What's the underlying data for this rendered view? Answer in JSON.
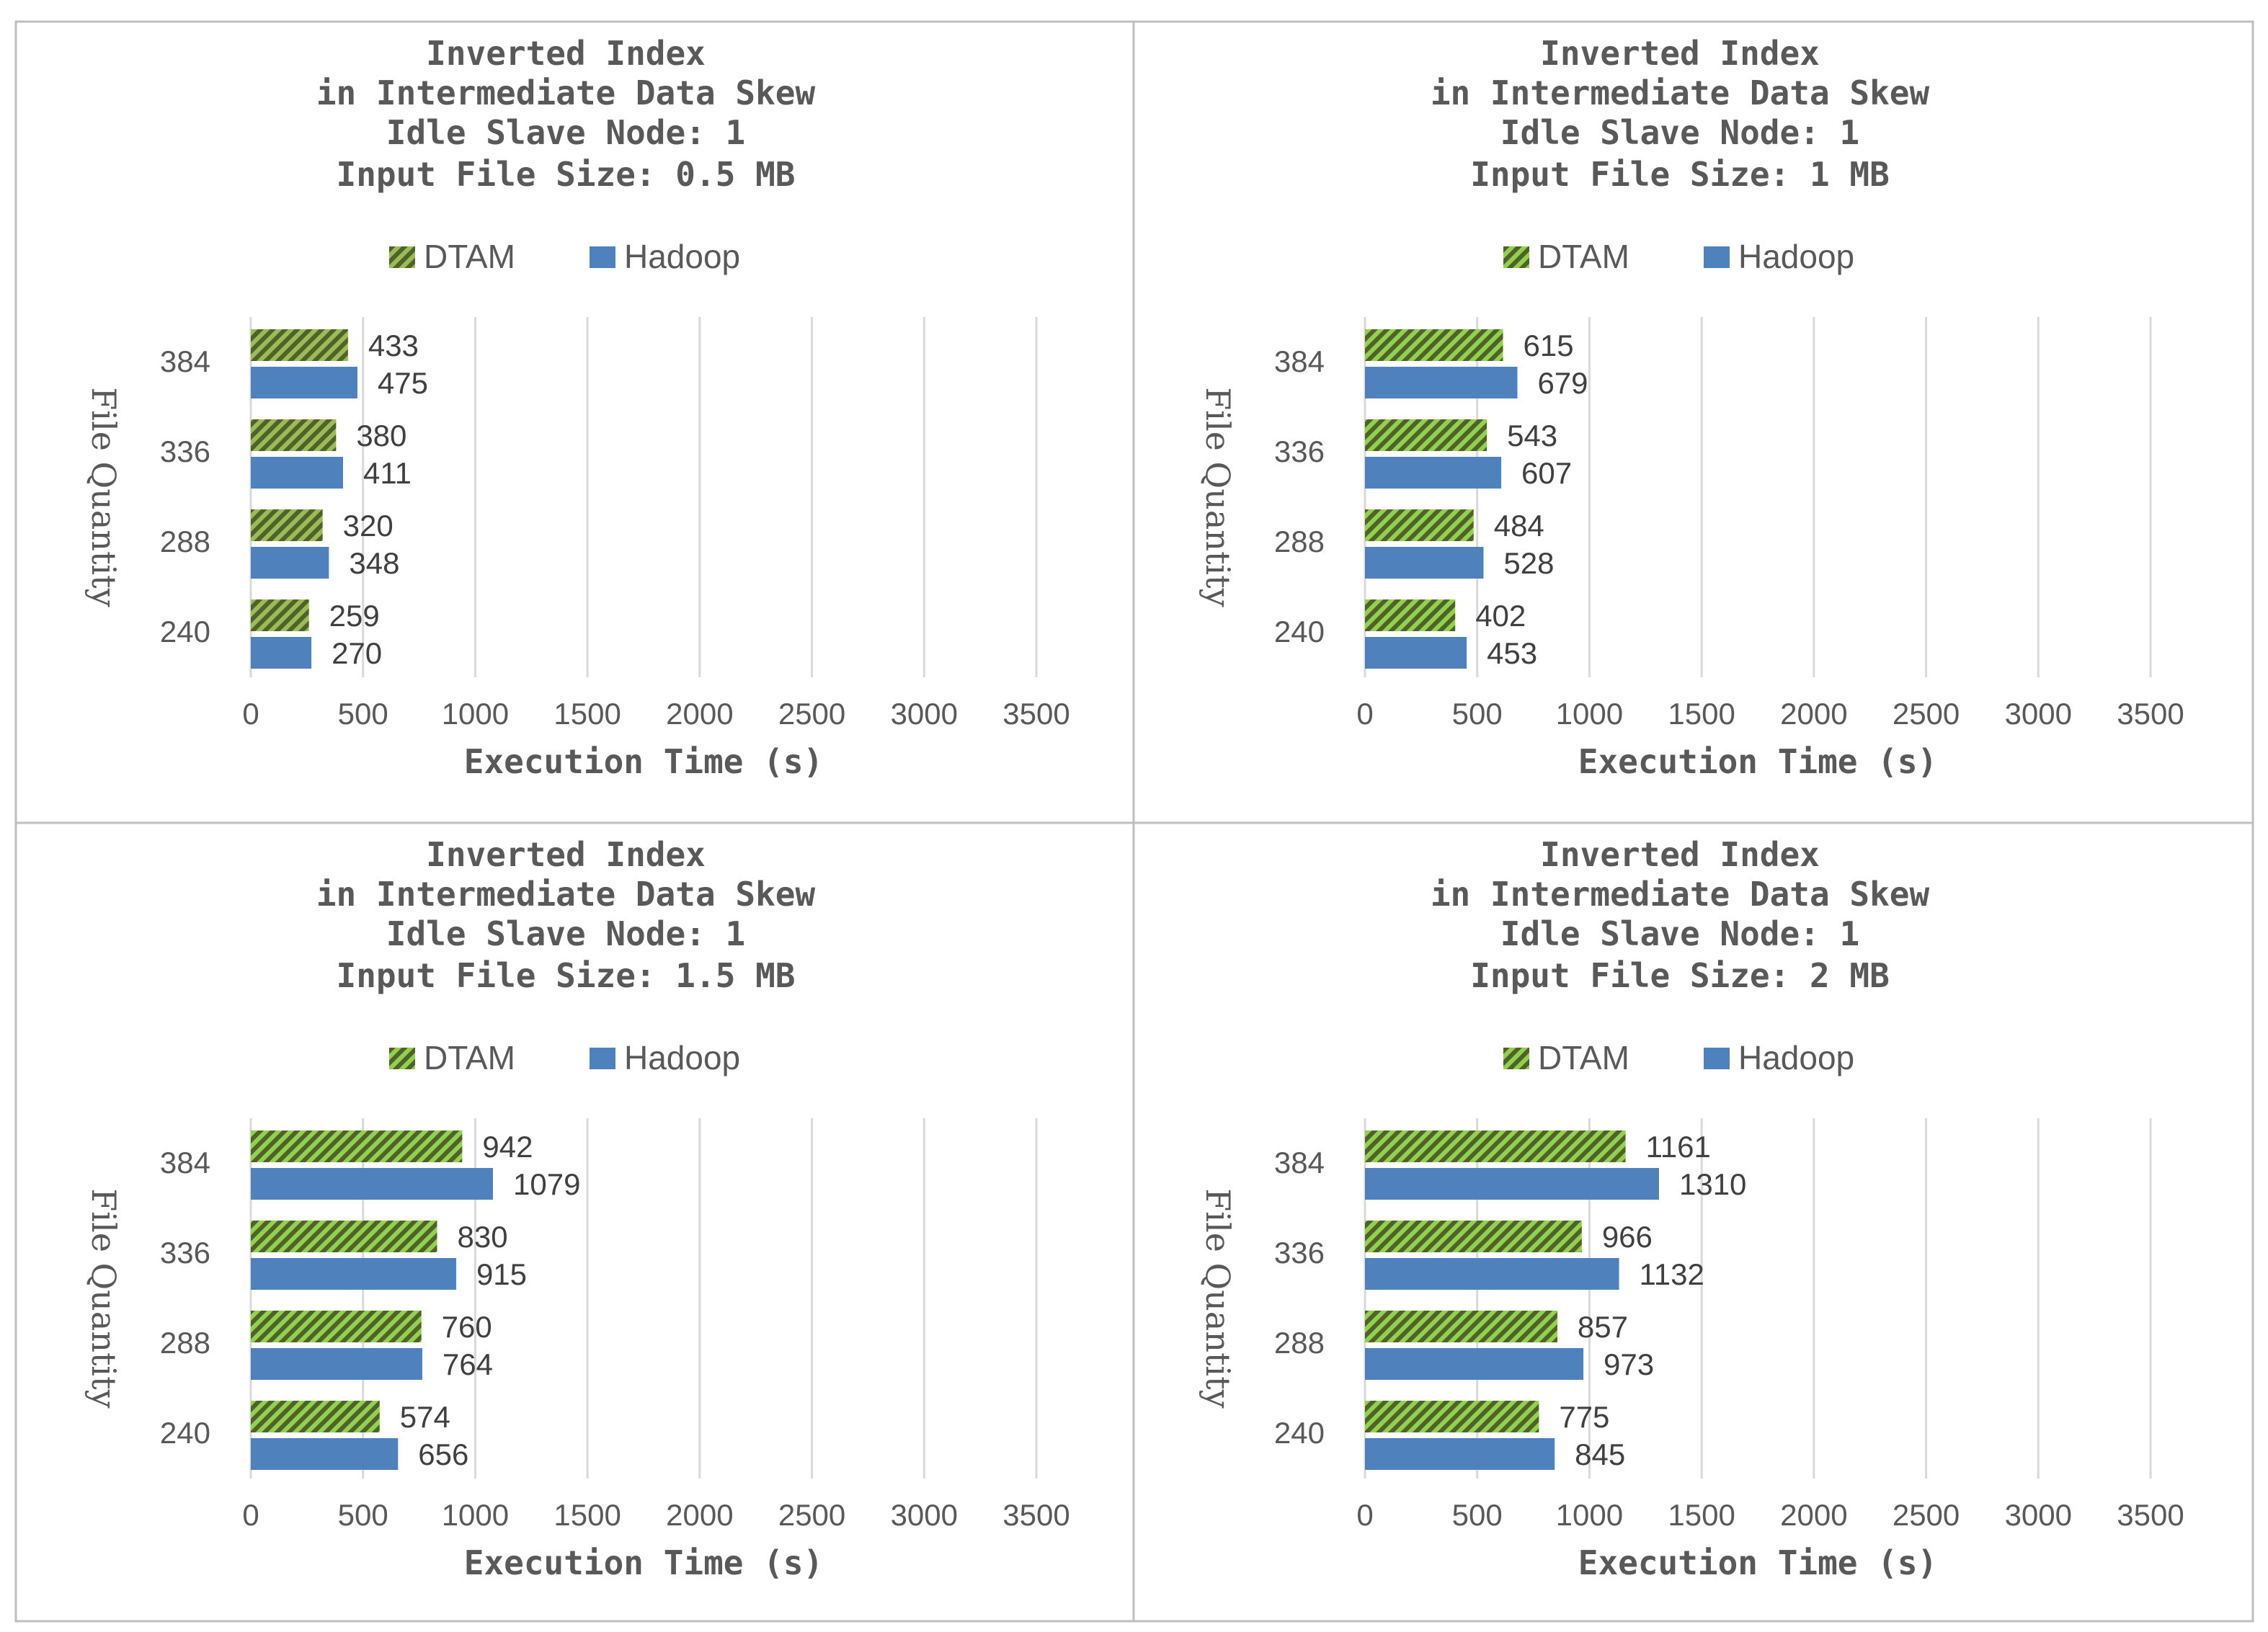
{
  "colors": {
    "dtam_fg": "#4f6228",
    "dtam_bg": "#92d050",
    "dtam_bg_first": "#9bbb59",
    "hadoop": "#4f81bd",
    "grid": "#d9d9d9",
    "frame": "#bfbfbf"
  },
  "chart_data": [
    {
      "type": "bar",
      "orientation": "horizontal",
      "title_lines": [
        "Inverted Index",
        "in Intermediate Data Skew",
        "Idle Slave Node: 1",
        "Input File Size: 0.5 MB"
      ],
      "xlabel": "Execution Time (s)",
      "ylabel": "File Quantity",
      "categories": [
        "384",
        "336",
        "288",
        "240"
      ],
      "xlim": [
        0,
        3500
      ],
      "xticks": [
        "0",
        "500",
        "1000",
        "1500",
        "2000",
        "2500",
        "3000",
        "3500"
      ],
      "legend": [
        "DTAM",
        "Hadoop"
      ],
      "series": [
        {
          "name": "DTAM",
          "values": [
            433,
            380,
            320,
            259
          ]
        },
        {
          "name": "Hadoop",
          "values": [
            475,
            411,
            348,
            270
          ]
        }
      ]
    },
    {
      "type": "bar",
      "orientation": "horizontal",
      "title_lines": [
        "Inverted Index",
        "in Intermediate Data Skew",
        "Idle Slave Node: 1",
        "Input File Size: 1 MB"
      ],
      "xlabel": "Execution Time (s)",
      "ylabel": "File Quantity",
      "categories": [
        "384",
        "336",
        "288",
        "240"
      ],
      "xlim": [
        0,
        3500
      ],
      "xticks": [
        "0",
        "500",
        "1000",
        "1500",
        "2000",
        "2500",
        "3000",
        "3500"
      ],
      "legend": [
        "DTAM",
        "Hadoop"
      ],
      "series": [
        {
          "name": "DTAM",
          "values": [
            615,
            543,
            484,
            402
          ]
        },
        {
          "name": "Hadoop",
          "values": [
            679,
            607,
            528,
            453
          ]
        }
      ]
    },
    {
      "type": "bar",
      "orientation": "horizontal",
      "title_lines": [
        "Inverted Index",
        "in Intermediate Data Skew",
        "Idle Slave Node: 1",
        "Input File Size: 1.5 MB"
      ],
      "xlabel": "Execution Time (s)",
      "ylabel": "File Quantity",
      "categories": [
        "384",
        "336",
        "288",
        "240"
      ],
      "xlim": [
        0,
        3500
      ],
      "xticks": [
        "0",
        "500",
        "1000",
        "1500",
        "2000",
        "2500",
        "3000",
        "3500"
      ],
      "legend": [
        "DTAM",
        "Hadoop"
      ],
      "series": [
        {
          "name": "DTAM",
          "values": [
            942,
            830,
            760,
            574
          ]
        },
        {
          "name": "Hadoop",
          "values": [
            1079,
            915,
            764,
            656
          ]
        }
      ]
    },
    {
      "type": "bar",
      "orientation": "horizontal",
      "title_lines": [
        "Inverted Index",
        "in Intermediate Data Skew",
        "Idle Slave Node: 1",
        "Input File Size: 2 MB"
      ],
      "xlabel": "Execution Time (s)",
      "ylabel": "File Quantity",
      "categories": [
        "384",
        "336",
        "288",
        "240"
      ],
      "xlim": [
        0,
        3500
      ],
      "xticks": [
        "0",
        "500",
        "1000",
        "1500",
        "2000",
        "2500",
        "3000",
        "3500"
      ],
      "legend": [
        "DTAM",
        "Hadoop"
      ],
      "series": [
        {
          "name": "DTAM",
          "values": [
            1161,
            966,
            857,
            775
          ]
        },
        {
          "name": "Hadoop",
          "values": [
            1310,
            1132,
            973,
            845
          ]
        }
      ]
    }
  ]
}
